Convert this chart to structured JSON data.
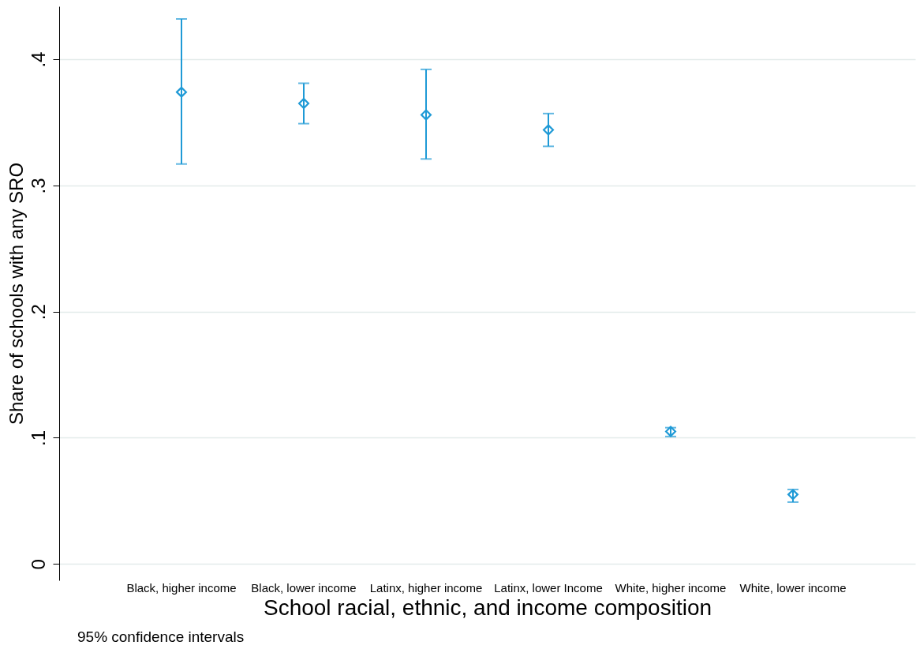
{
  "chart_data": {
    "type": "scatter",
    "xlabel": "School racial, ethnic, and income composition",
    "ylabel": "Share of schools with any SRO",
    "categories": [
      "Black, higher income",
      "Black, lower income",
      "Latinx, higher income",
      "Latinx, lower Income",
      "White, higher income",
      "White, lower income"
    ],
    "values": [
      0.374,
      0.365,
      0.356,
      0.344,
      0.105,
      0.055
    ],
    "errors": [
      [
        0.317,
        0.432
      ],
      [
        0.349,
        0.381
      ],
      [
        0.321,
        0.392
      ],
      [
        0.331,
        0.357
      ],
      [
        0.101,
        0.108
      ],
      [
        0.049,
        0.059
      ]
    ],
    "color": "#1f9ad6",
    "marker": "diamond",
    "grid": "y",
    "ylim": [
      -0.013,
      0.442
    ],
    "yticks": [
      {
        "value": 0,
        "label": "0"
      },
      {
        "value": 0.1,
        "label": ".1"
      },
      {
        "value": 0.2,
        "label": ".2"
      },
      {
        "value": 0.3,
        "label": ".3"
      },
      {
        "value": 0.4,
        "label": ".4"
      }
    ],
    "annotations": [
      "95% confidence intervals"
    ]
  }
}
